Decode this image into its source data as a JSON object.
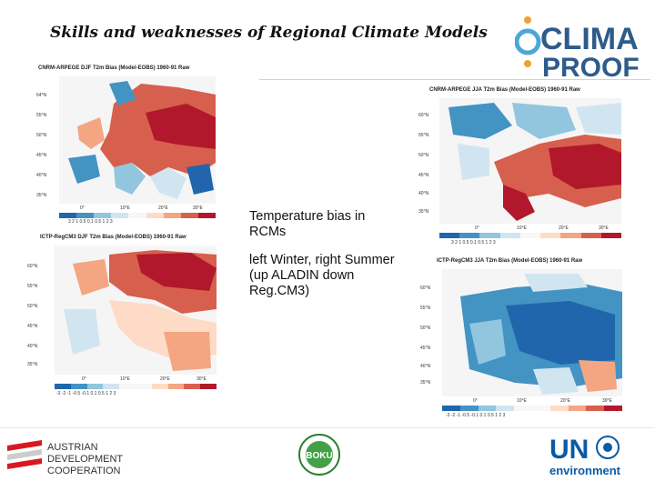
{
  "slide": {
    "title": "Skills and weaknesses of Regional Climate Models",
    "note_line1": "Temperature bias in RCMs",
    "note_line2": "left Winter, right Summer  (up ALADIN down Reg.CM3)"
  },
  "logos": {
    "clima_top": "CLIMA",
    "clima_bottom": "PROOF",
    "ada_line1": "AUSTRIAN",
    "ada_line2": "DEVELOPMENT",
    "ada_line3": "COOPERATION",
    "boku": "BOKU",
    "un": "UN",
    "environment": "environment"
  },
  "maps": [
    {
      "title": "CNRM-ARPEGE DJF T2m Bias (Model-EOBS) 1960-91 Raw",
      "ticks": "3  2  1  0.5  0.1  0.5  1  2  3",
      "lats": [
        "64°N",
        "55°N",
        "50°N",
        "45°N",
        "40°N",
        "35°N"
      ],
      "lons": [
        "0°",
        "10°E",
        "20°E",
        "30°E"
      ]
    },
    {
      "title": "CNRM-ARPEGE JJA T2m Bias (Model-EOBS) 1960-91 Raw",
      "ticks": "3  2  1  0.5  0.1  0.5  1  2  3",
      "lats": [
        "60°N",
        "55°N",
        "50°N",
        "45°N",
        "40°N",
        "35°N"
      ],
      "lons": [
        "0°",
        "10°E",
        "20°E",
        "30°E"
      ]
    },
    {
      "title": "ICTP-RegCM3 DJF T2m Bias (Model-EOBS) 1960-91 Raw",
      "ticks": "-3  -2  -1  -0.5  -0.1  0.1  0.5  1  2  3",
      "lats": [
        "60°N",
        "55°N",
        "50°N",
        "45°N",
        "40°N",
        "35°N"
      ],
      "lons": [
        "0°",
        "10°E",
        "20°E",
        "30°E"
      ]
    },
    {
      "title": "ICTP-RegCM3 JJA T2m Bias (Model-EOBS) 1960-91 Raw",
      "ticks": "-3  -2  -1  -0.5  -0.1  0.1  0.5  1  2  3",
      "lats": [
        "60°N",
        "55°N",
        "50°N",
        "45°N",
        "40°N",
        "35°N"
      ],
      "lons": [
        "0°",
        "10°E",
        "20°E",
        "30°E"
      ]
    }
  ],
  "colors": {
    "deep_red": "#b2182b",
    "red": "#d6604d",
    "light_red": "#f4a582",
    "pale_red": "#fddbc7",
    "white": "#f7f7f7",
    "pale_blue": "#d1e5f0",
    "light_blue": "#92c5de",
    "blue": "#4393c3",
    "deep_blue": "#2166ac"
  }
}
